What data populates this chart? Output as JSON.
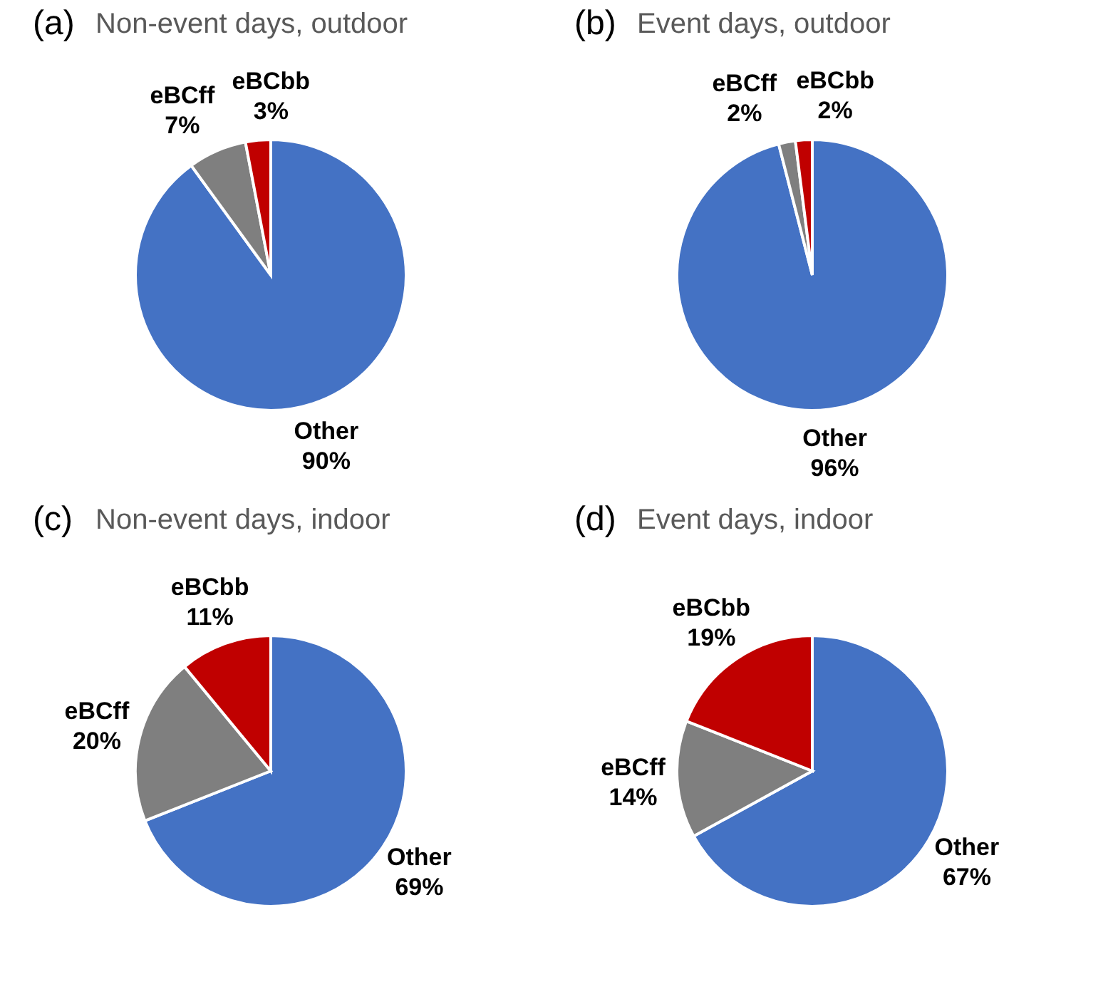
{
  "chart_data": [
    {
      "type": "pie",
      "title": "Non-event days, outdoor",
      "annotations": [
        "(a)"
      ],
      "categories": [
        "Other",
        "eBCff",
        "eBCbb"
      ],
      "values": [
        90,
        7,
        3
      ],
      "value_labels": [
        "90%",
        "7%",
        "3%"
      ],
      "colors": [
        "#4472c4",
        "#7f7f7f",
        "#c00000"
      ],
      "legend": false
    },
    {
      "type": "pie",
      "title": "Event days, outdoor",
      "annotations": [
        "(b)"
      ],
      "categories": [
        "Other",
        "eBCff",
        "eBCbb"
      ],
      "values": [
        96,
        2,
        2
      ],
      "value_labels": [
        "96%",
        "2%",
        "2%"
      ],
      "colors": [
        "#4472c4",
        "#7f7f7f",
        "#c00000"
      ],
      "legend": false
    },
    {
      "type": "pie",
      "title": "Non-event days, indoor",
      "annotations": [
        "(c)"
      ],
      "categories": [
        "Other",
        "eBCff",
        "eBCbb"
      ],
      "values": [
        69,
        20,
        11
      ],
      "value_labels": [
        "69%",
        "20%",
        "11%"
      ],
      "colors": [
        "#4472c4",
        "#7f7f7f",
        "#c00000"
      ],
      "legend": false
    },
    {
      "type": "pie",
      "title": "Event days, indoor",
      "annotations": [
        "(d)"
      ],
      "categories": [
        "Other",
        "eBCff",
        "eBCbb"
      ],
      "values": [
        67,
        14,
        19
      ],
      "value_labels": [
        "67%",
        "14%",
        "19%"
      ],
      "colors": [
        "#4472c4",
        "#7f7f7f",
        "#c00000"
      ],
      "legend": false
    }
  ]
}
